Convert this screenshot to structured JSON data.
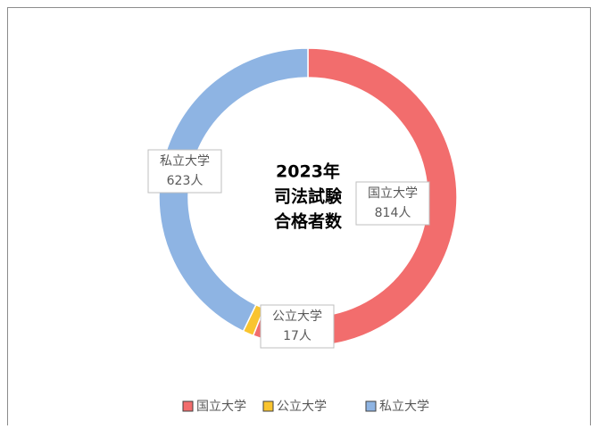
{
  "chart_data": {
    "type": "donut",
    "title": [
      "2023年",
      "司法試験",
      "合格者数"
    ],
    "categories": [
      "国立大学",
      "公立大学",
      "私立大学"
    ],
    "values": [
      814,
      17,
      623
    ],
    "value_labels": [
      "814人",
      "17人",
      "623人"
    ],
    "colors": [
      "#f26d6d",
      "#f9c42f",
      "#8eb4e3"
    ],
    "legend": "bottom"
  }
}
